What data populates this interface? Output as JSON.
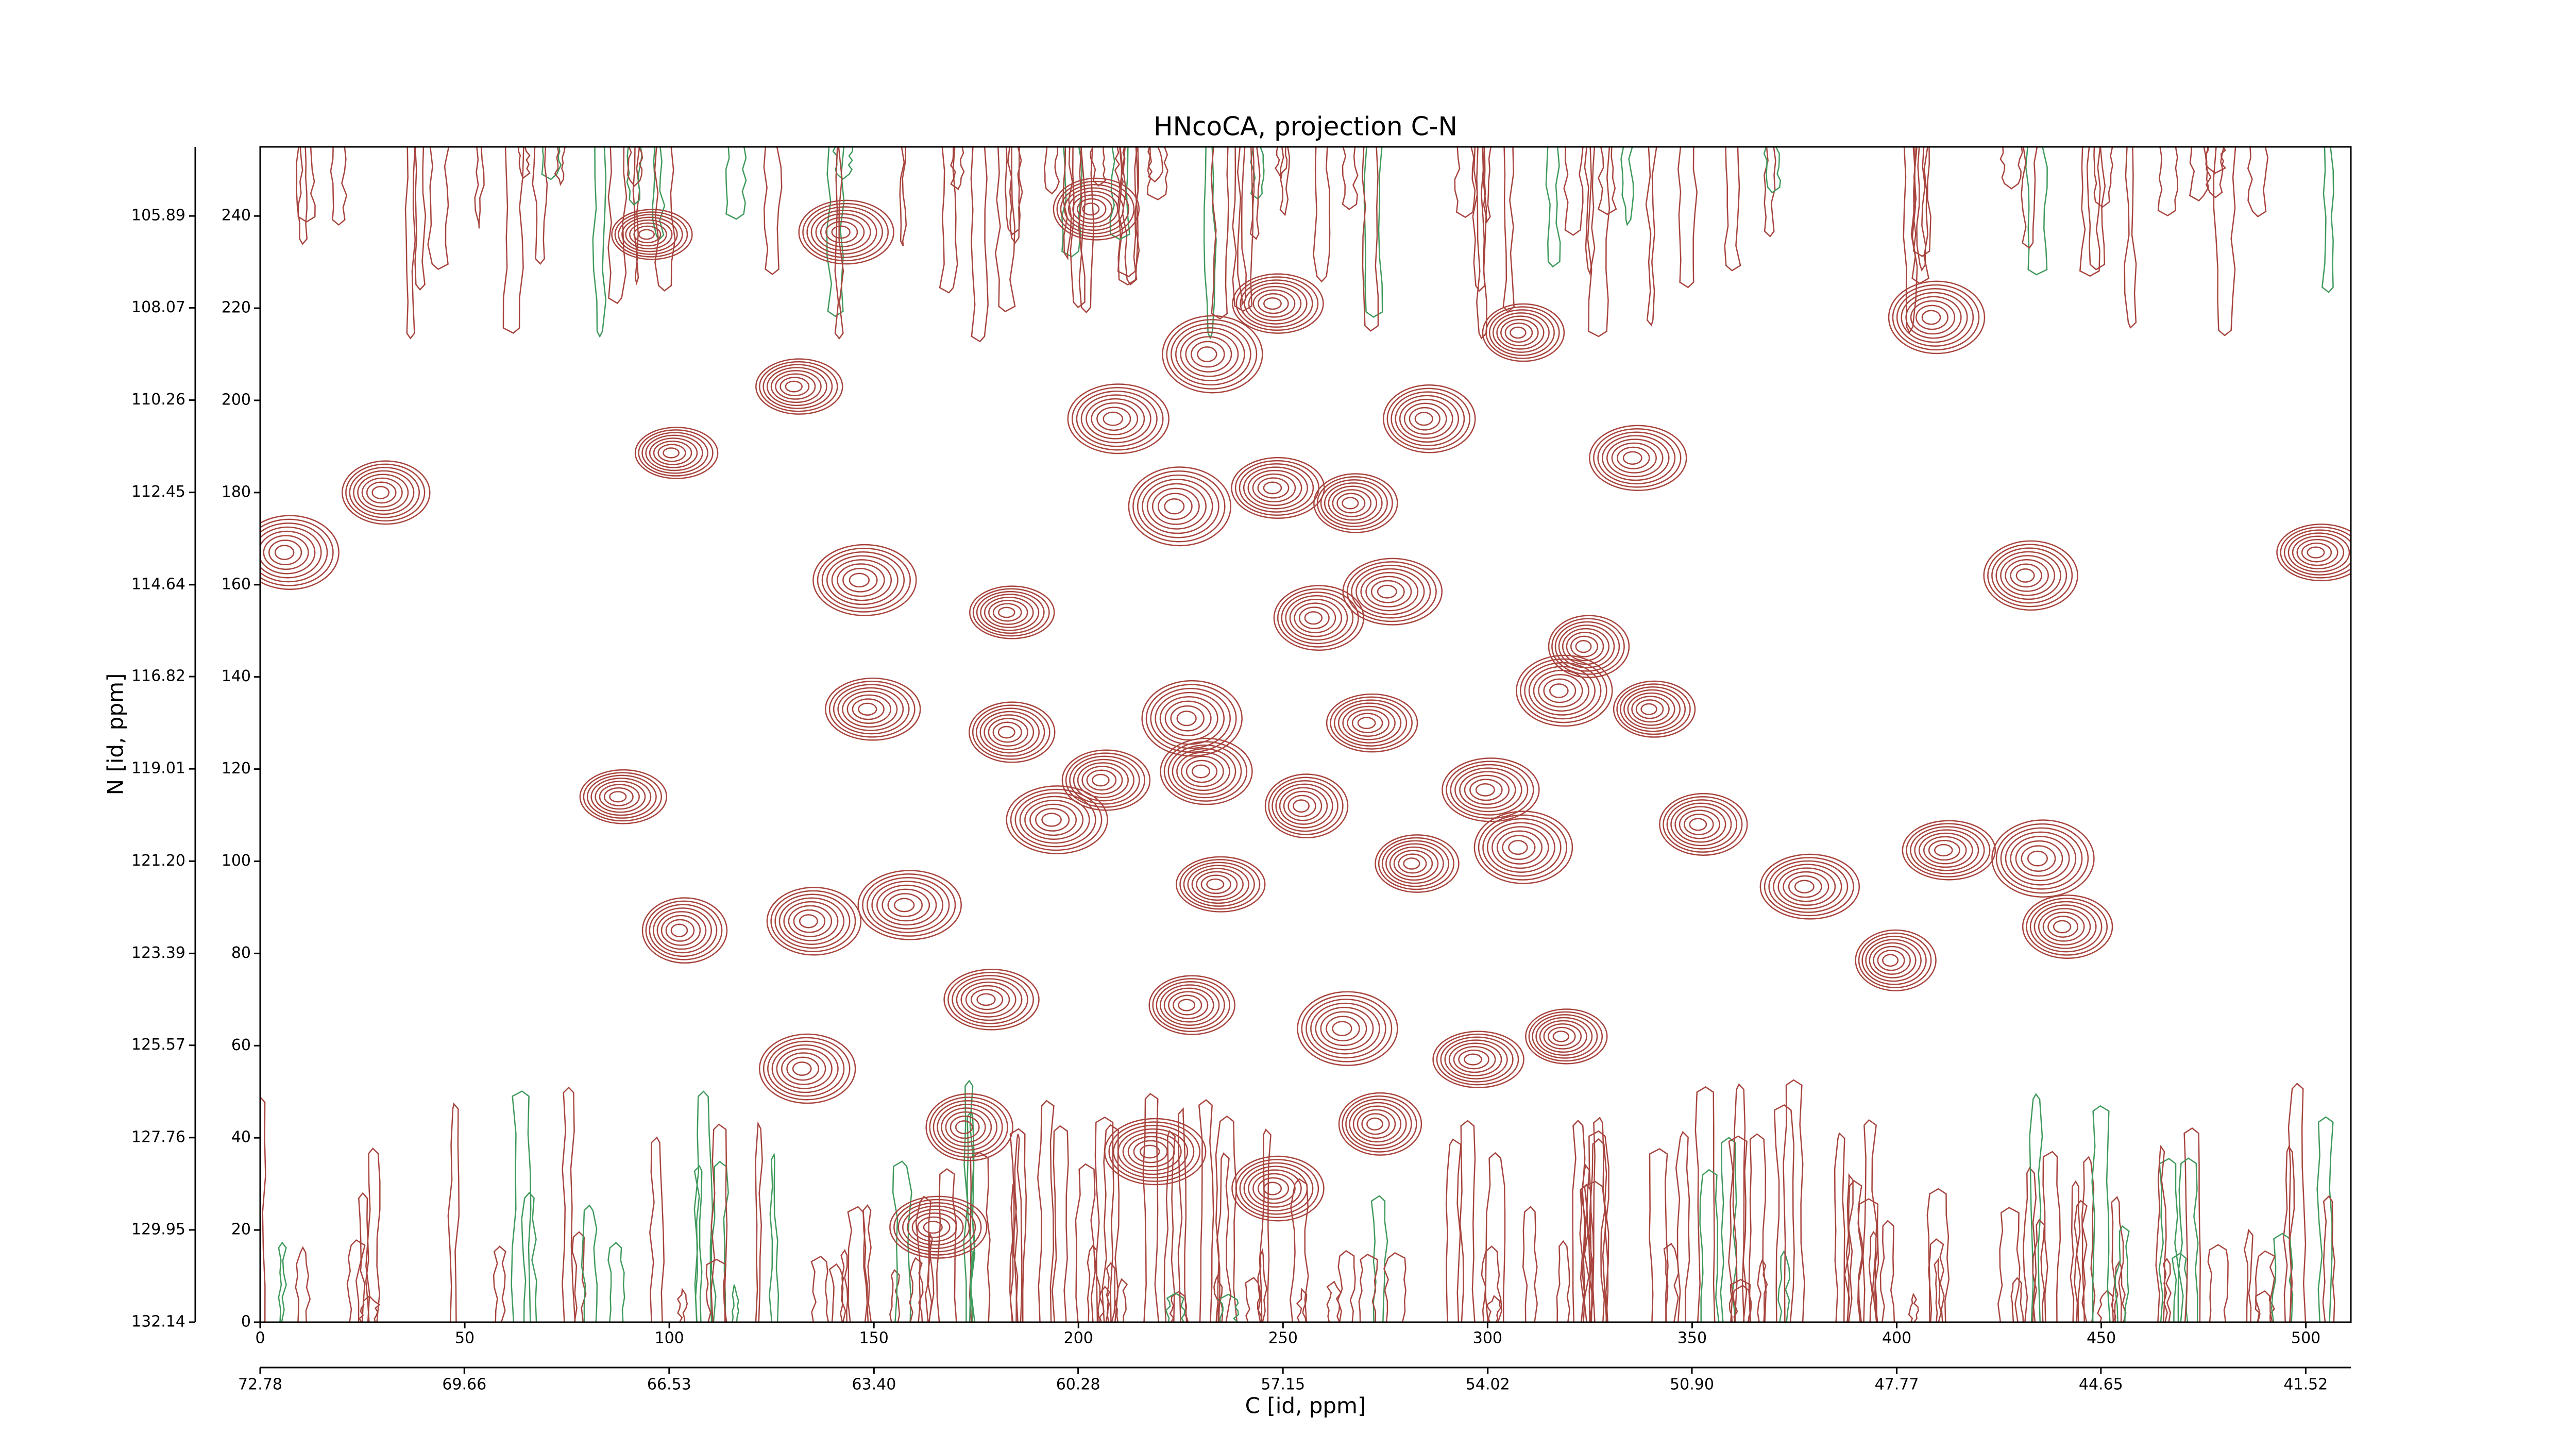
{
  "chart_data": {
    "type": "contour",
    "title": "HNcoCA, projection C-N",
    "xlabel": "C [id, ppm]",
    "ylabel": "N [id, ppm]",
    "color": "#a8443e",
    "negative_color": "#3f9a5c",
    "xlim": [
      0,
      511
    ],
    "ylim": [
      0,
      255
    ],
    "xticks": [
      0,
      50,
      100,
      150,
      200,
      250,
      300,
      350,
      400,
      450,
      500
    ],
    "yticks": [
      0,
      20,
      40,
      60,
      80,
      100,
      120,
      140,
      160,
      180,
      200,
      220,
      240
    ],
    "x2lim": [
      72.78,
      40.83
    ],
    "x2ticks": [
      72.78,
      69.66,
      66.53,
      {
        "value": 63.4,
        "label": "63.40"
      },
      60.28,
      57.15,
      54.02,
      {
        "value": 50.9,
        "label": "50.90"
      },
      47.77,
      44.65,
      41.52
    ],
    "y2lim": [
      132.14,
      104.25
    ],
    "y2ticks": [
      132.14,
      129.95,
      127.76,
      125.57,
      123.39,
      {
        "value": 121.2,
        "label": "121.20"
      },
      119.01,
      116.82,
      114.64,
      112.45,
      110.26,
      108.07,
      105.89
    ],
    "peaks": {
      "x": [
        95,
        142.5,
        203.6,
        232,
        248,
        308,
        409,
        131,
        209,
        285,
        101,
        336,
        30,
        224,
        248,
        267,
        6.5,
        503,
        147,
        432,
        183,
        276,
        258,
        324,
        149,
        183,
        227,
        271,
        340,
        318,
        88,
        194,
        230.5,
        255,
        300,
        352,
        435,
        412,
        282,
        308,
        234,
        158,
        134.6,
        103,
        378,
        441,
        399,
        178,
        227,
        265,
        297,
        318.5,
        133,
        172.6,
        218,
        248,
        273,
        165,
        206
      ],
      "y": [
        236,
        236.5,
        241.5,
        210,
        221,
        214.7,
        218,
        203,
        196,
        196,
        188.6,
        187.5,
        180,
        177,
        181,
        177.7,
        167,
        167,
        161,
        162,
        154,
        158.5,
        152.8,
        146.6,
        133,
        128,
        131,
        130,
        133,
        137,
        114,
        109,
        119.5,
        112,
        115.5,
        108,
        100.6,
        102.4,
        99.5,
        103,
        95,
        90.5,
        87,
        85,
        94.5,
        85.8,
        78.5,
        70,
        68.8,
        63.7,
        57,
        62,
        55,
        42.3,
        37,
        29,
        43,
        20.6,
        117.6
      ]
    }
  }
}
